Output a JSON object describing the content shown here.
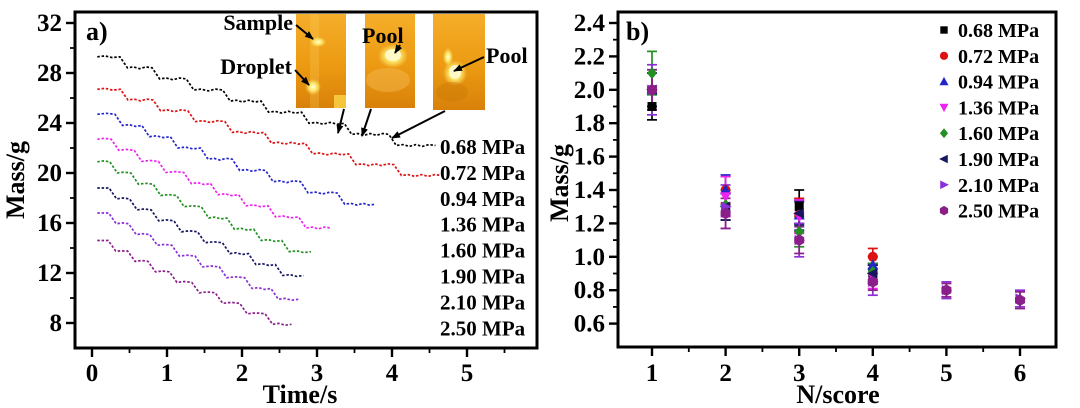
{
  "figure": {
    "background": "#ffffff",
    "panel_a_label": "a)",
    "panel_b_label": "b)"
  },
  "chart_data": [
    {
      "panel": "a",
      "type": "line",
      "panel_label": "a)",
      "xlabel": "Time/s",
      "ylabel": "Mass/g",
      "xticks": [
        0,
        1,
        2,
        3,
        4,
        5
      ],
      "xticks_minor": [
        0.5,
        1.5,
        2.5,
        3.5,
        4.5,
        5.5
      ],
      "yticks": [
        8,
        12,
        16,
        20,
        24,
        28,
        32
      ],
      "yticks_minor": [
        10,
        14,
        18,
        22,
        26,
        30
      ],
      "xlim": [
        -0.23,
        5.93
      ],
      "ylim": [
        6.0,
        32.9
      ],
      "line_style": "dashed-staircase",
      "series": [
        {
          "label": "0.68 MPa",
          "color": "#000000",
          "start_mass": 29.3,
          "end_mass": 22.2,
          "start_time": 0.07,
          "end_time": 4.58,
          "steps": 8
        },
        {
          "label": "0.72 MPa",
          "color": "#dd1111",
          "start_mass": 26.7,
          "end_mass": 19.8,
          "start_time": 0.07,
          "end_time": 4.66,
          "steps": 8
        },
        {
          "label": "0.94 MPa",
          "color": "#2424cc",
          "start_mass": 24.7,
          "end_mass": 17.5,
          "start_time": 0.07,
          "end_time": 3.78,
          "steps": 8
        },
        {
          "label": "1.36 MPa",
          "color": "#ee22ee",
          "start_mass": 22.7,
          "end_mass": 15.6,
          "start_time": 0.07,
          "end_time": 3.18,
          "steps": 8
        },
        {
          "label": "1.60 MPa",
          "color": "#239023",
          "start_mass": 20.9,
          "end_mass": 13.7,
          "start_time": 0.07,
          "end_time": 2.92,
          "steps": 8
        },
        {
          "label": "1.90 MPa",
          "color": "#17175f",
          "start_mass": 18.8,
          "end_mass": 11.8,
          "start_time": 0.07,
          "end_time": 2.82,
          "steps": 8
        },
        {
          "label": "2.10 MPa",
          "color": "#8b2fd6",
          "start_mass": 16.8,
          "end_mass": 9.9,
          "start_time": 0.07,
          "end_time": 2.75,
          "steps": 8
        },
        {
          "label": "2.50 MPa",
          "color": "#8a1f8a",
          "start_mass": 14.6,
          "end_mass": 7.9,
          "start_time": 0.07,
          "end_time": 2.66,
          "steps": 8
        }
      ],
      "annotations": {
        "sample": "Sample",
        "droplet": "Droplet",
        "pool1": "Pool",
        "pool2": "Pool"
      },
      "inset_photo_colors": {
        "base_top": "#f5ae2a",
        "base_mid": "#ec9a12",
        "base_bottom": "#d8810a",
        "glow_core": "#ffffe0",
        "glow_mid": "#ffe96e"
      }
    },
    {
      "panel": "b",
      "type": "scatter",
      "panel_label": "b)",
      "xlabel": "N/score",
      "ylabel": "Mass/g",
      "xticks": [
        1,
        2,
        3,
        4,
        5,
        6
      ],
      "xticks_minor": [
        1.5,
        2.5,
        3.5,
        4.5,
        5.5
      ],
      "yticks": [
        0.6,
        0.8,
        1.0,
        1.2,
        1.4,
        1.6,
        1.8,
        2.0,
        2.2,
        2.4
      ],
      "yticks_minor": [
        0.7,
        0.9,
        1.1,
        1.3,
        1.5,
        1.7,
        1.9,
        2.1,
        2.3
      ],
      "xlim": [
        0.54,
        6.49
      ],
      "ylim": [
        0.46,
        2.47
      ],
      "legend_position": "top-right",
      "error_bars": true,
      "series": [
        {
          "label": "0.68 MPa",
          "color": "#000000",
          "marker": "square",
          "x": [
            1,
            2,
            3,
            4
          ],
          "y": [
            1.9,
            1.3,
            1.3,
            0.9
          ],
          "err": [
            0.08,
            0.08,
            0.1,
            0.06
          ]
        },
        {
          "label": "0.72 MPa",
          "color": "#dd1111",
          "marker": "circle",
          "x": [
            1,
            2,
            3,
            4
          ],
          "y": [
            2.0,
            1.4,
            1.25,
            1.0
          ],
          "err": [
            0.1,
            0.08,
            0.1,
            0.05
          ]
        },
        {
          "label": "0.94 MPa",
          "color": "#2424cc",
          "marker": "triangle-up",
          "x": [
            1,
            2,
            3,
            4
          ],
          "y": [
            2.0,
            1.4,
            1.25,
            0.95
          ],
          "err": [
            0.1,
            0.09,
            0.09,
            0.05
          ]
        },
        {
          "label": "1.36 MPa",
          "color": "#ee22ee",
          "marker": "triangle-down",
          "x": [
            1,
            2,
            3,
            4
          ],
          "y": [
            2.0,
            1.36,
            1.24,
            0.88
          ],
          "err": [
            0.12,
            0.12,
            0.1,
            0.07
          ]
        },
        {
          "label": "1.60 MPa",
          "color": "#239023",
          "marker": "diamond",
          "x": [
            1,
            2,
            3,
            4
          ],
          "y": [
            2.1,
            1.31,
            1.15,
            0.91
          ],
          "err": [
            0.13,
            0.09,
            0.09,
            0.05
          ]
        },
        {
          "label": "1.90 MPa",
          "color": "#17175f",
          "marker": "triangle-left",
          "x": [
            1,
            2,
            3,
            4
          ],
          "y": [
            2.0,
            1.3,
            1.26,
            0.9
          ],
          "err": [
            0.1,
            0.08,
            0.07,
            0.05
          ]
        },
        {
          "label": "2.10 MPa",
          "color": "#8b2fd6",
          "marker": "triangle-right",
          "x": [
            1,
            2,
            3,
            4,
            5,
            6
          ],
          "y": [
            2.0,
            1.3,
            1.1,
            0.85,
            0.8,
            0.75
          ],
          "err": [
            0.15,
            0.13,
            0.1,
            0.08,
            0.05,
            0.05
          ]
        },
        {
          "label": "2.50 MPa",
          "color": "#8a1f8a",
          "marker": "hexagon",
          "x": [
            1,
            2,
            3,
            4,
            5,
            6
          ],
          "y": [
            2.0,
            1.26,
            1.1,
            0.85,
            0.8,
            0.74
          ],
          "err": [
            0.12,
            0.09,
            0.08,
            0.05,
            0.04,
            0.05
          ]
        }
      ]
    }
  ]
}
